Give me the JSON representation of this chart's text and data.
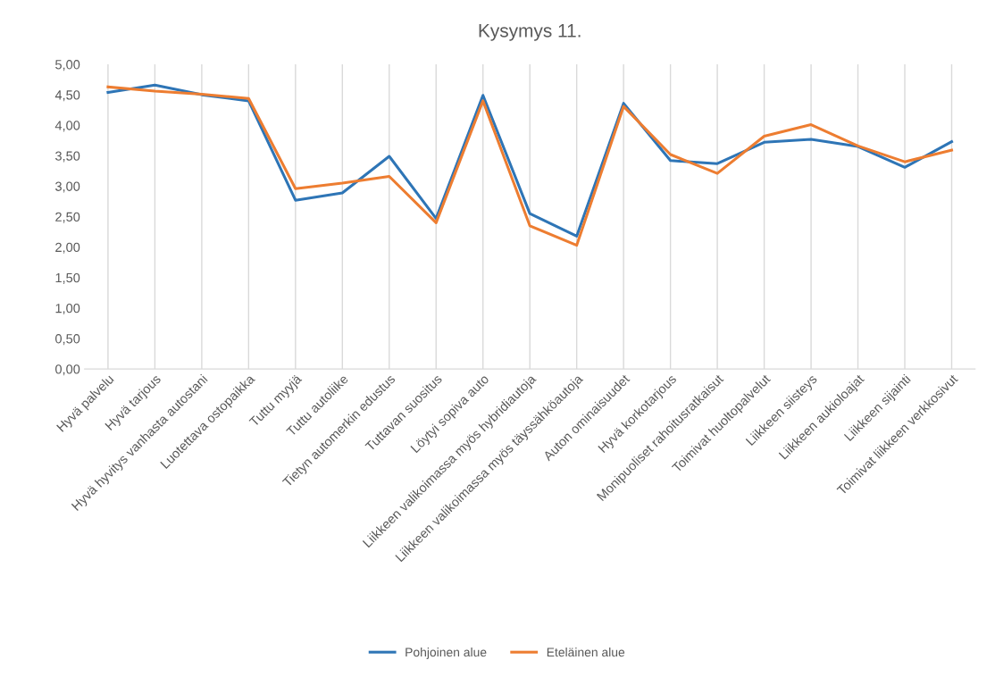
{
  "chart_data": {
    "type": "line",
    "title": "Kysymys 11.",
    "categories": [
      "Hyvä palvelu",
      "Hyvä tarjous",
      "Hyvä hyvitys vanhasta autostani",
      "Luotettava ostopaikka",
      "Tuttu myyjä",
      "Tuttu autoliike",
      "Tietyn automerkin edustus",
      "Tuttavan suositus",
      "Löytyi sopiva auto",
      "Liikkeen valikoimassa myös hybridiautoja",
      "Liikkeen valikoimassa myös täyssähköautoja",
      "Auton ominaisuudet",
      "Hyvä korkotarjous",
      "Monipuoliset rahoitusratkaisut",
      "Toimivat huoltopalvelut",
      "Liikkeen siisteys",
      "Liikkeen aukioloajat",
      "Liikkeen sijainti",
      "Toimivat liikkeen verkkosivut"
    ],
    "series": [
      {
        "name": "Pohjoinen alue",
        "color": "#2e75b6",
        "values": [
          4.54,
          4.66,
          4.5,
          4.4,
          2.77,
          2.89,
          3.49,
          2.47,
          4.49,
          2.55,
          2.18,
          4.36,
          3.42,
          3.37,
          3.72,
          3.77,
          3.65,
          3.31,
          3.73
        ]
      },
      {
        "name": "Eteläinen alue",
        "color": "#ed7d31",
        "values": [
          4.63,
          4.56,
          4.51,
          4.44,
          2.96,
          3.05,
          3.16,
          2.4,
          4.4,
          2.35,
          2.03,
          4.31,
          3.52,
          3.21,
          3.82,
          4.01,
          3.66,
          3.4,
          3.59
        ]
      }
    ],
    "ylim": [
      0,
      5
    ],
    "yticks": [
      {
        "value": 0,
        "label": "0,00"
      },
      {
        "value": 0.5,
        "label": "0,50"
      },
      {
        "value": 1,
        "label": "1,00"
      },
      {
        "value": 1.5,
        "label": "1,50"
      },
      {
        "value": 2,
        "label": "2,00"
      },
      {
        "value": 2.5,
        "label": "2,50"
      },
      {
        "value": 3,
        "label": "3,00"
      },
      {
        "value": 3.5,
        "label": "3,50"
      },
      {
        "value": 4,
        "label": "4,00"
      },
      {
        "value": 4.5,
        "label": "4,50"
      },
      {
        "value": 5,
        "label": "5,00"
      }
    ],
    "grid": "x",
    "legend": "bottom",
    "marker": "none",
    "line_style": "solid"
  }
}
